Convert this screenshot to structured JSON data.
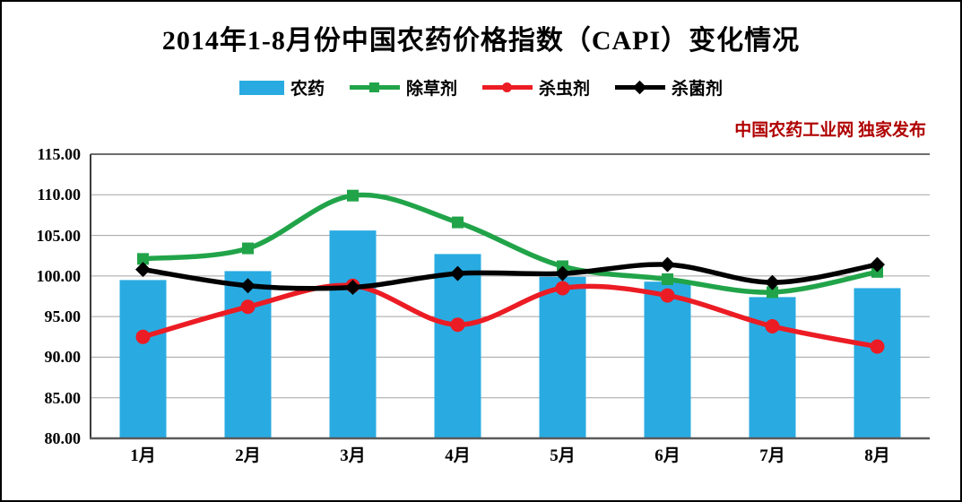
{
  "title": "2014年1-8月份中国农药价格指数（CAPI）变化情况",
  "publisher": "中国农药工业网 独家发布",
  "publisher_color": "#B00000",
  "legend": [
    {
      "label": "农药",
      "type": "bar",
      "color": "#29ABE2"
    },
    {
      "label": "除草剂",
      "type": "line-square",
      "color": "#21A449"
    },
    {
      "label": "杀虫剂",
      "type": "line-circle",
      "color": "#EC1C24"
    },
    {
      "label": "杀菌剂",
      "type": "line-diamond",
      "color": "#000000"
    }
  ],
  "chart_data": {
    "type": "bar",
    "subtype": "bar+smooth-lines",
    "categories": [
      "1月",
      "2月",
      "3月",
      "4月",
      "5月",
      "6月",
      "7月",
      "8月"
    ],
    "series": [
      {
        "name": "农药",
        "type": "bar",
        "marker": "none",
        "color": "#29ABE2",
        "values": [
          99.5,
          100.6,
          105.6,
          102.7,
          99.9,
          99.3,
          97.4,
          98.5
        ]
      },
      {
        "name": "除草剂",
        "type": "line",
        "marker": "square",
        "color": "#21A449",
        "values": [
          102.1,
          103.4,
          109.9,
          106.6,
          101.2,
          99.6,
          98.0,
          100.5
        ]
      },
      {
        "name": "杀虫剂",
        "type": "line",
        "marker": "circle",
        "color": "#EC1C24",
        "values": [
          92.5,
          96.2,
          98.8,
          94.0,
          98.5,
          97.6,
          93.8,
          91.3
        ]
      },
      {
        "name": "杀菌剂",
        "type": "line",
        "marker": "diamond",
        "color": "#000000",
        "values": [
          100.8,
          98.8,
          98.6,
          100.3,
          100.3,
          101.4,
          99.2,
          101.4
        ]
      }
    ],
    "title": "2014年1-8月份中国农药价格指数（CAPI）变化情况",
    "xlabel": "",
    "ylabel": "",
    "ylim": [
      80,
      115
    ],
    "ytick_step": 5,
    "ytick_labels": [
      "115.00",
      "110.00",
      "105.00",
      "100.00",
      "95.00",
      "90.00",
      "85.00",
      "80.00"
    ],
    "grid": true,
    "legend_position": "top",
    "gridline_color": "#A3A3A3",
    "axis_color": "#3B3B3B"
  }
}
